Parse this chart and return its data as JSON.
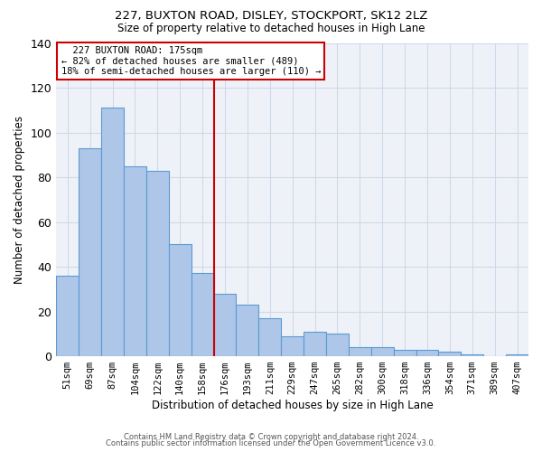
{
  "title1": "227, BUXTON ROAD, DISLEY, STOCKPORT, SK12 2LZ",
  "title2": "Size of property relative to detached houses in High Lane",
  "xlabel": "Distribution of detached houses by size in High Lane",
  "ylabel": "Number of detached properties",
  "categories": [
    "51sqm",
    "69sqm",
    "87sqm",
    "104sqm",
    "122sqm",
    "140sqm",
    "158sqm",
    "176sqm",
    "193sqm",
    "211sqm",
    "229sqm",
    "247sqm",
    "265sqm",
    "282sqm",
    "300sqm",
    "318sqm",
    "336sqm",
    "354sqm",
    "371sqm",
    "389sqm",
    "407sqm"
  ],
  "hist_values": [
    36,
    93,
    111,
    85,
    83,
    50,
    37,
    28,
    23,
    17,
    9,
    11,
    10,
    4,
    4,
    3,
    3,
    2,
    1,
    0,
    1
  ],
  "bar_color": "#aec6e8",
  "bar_edgecolor": "#5b9bd5",
  "vline_color": "#cc0000",
  "annotation_text": "  227 BUXTON ROAD: 175sqm  \n← 82% of detached houses are smaller (489)\n18% of semi-detached houses are larger (110) →",
  "annotation_box_color": "#cc0000",
  "ylim": [
    0,
    140
  ],
  "yticks": [
    0,
    20,
    40,
    60,
    80,
    100,
    120,
    140
  ],
  "grid_color": "#d0d8e8",
  "background_color": "#eef2f8",
  "footer1": "Contains HM Land Registry data © Crown copyright and database right 2024.",
  "footer2": "Contains public sector information licensed under the Open Government Licence v3.0."
}
